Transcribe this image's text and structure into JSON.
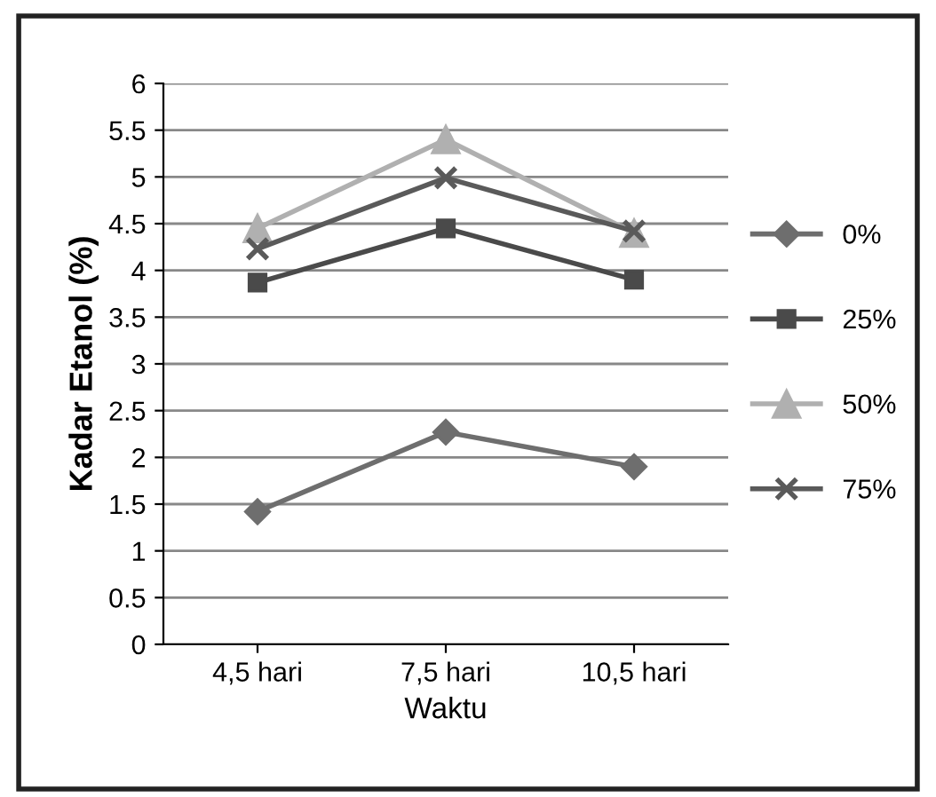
{
  "chart_data": {
    "type": "line",
    "xlabel": "Waktu",
    "ylabel": "Kadar Etanol (%)",
    "categories": [
      "4,5 hari",
      "7,5 hari",
      "10,5 hari"
    ],
    "series": [
      {
        "name": "0%",
        "color": "#6e6e6e",
        "marker": "diamond",
        "values": [
          1.42,
          2.27,
          1.9
        ]
      },
      {
        "name": "25%",
        "color": "#4a4a4a",
        "marker": "square",
        "values": [
          3.87,
          4.45,
          3.9
        ]
      },
      {
        "name": "50%",
        "color": "#b0b0b0",
        "marker": "triangle",
        "values": [
          4.45,
          5.4,
          4.4
        ]
      },
      {
        "name": "75%",
        "color": "#5a5a5a",
        "marker": "cross",
        "values": [
          4.23,
          4.99,
          4.42
        ]
      }
    ],
    "ylim": [
      0,
      6
    ],
    "yticks": [
      0,
      0.5,
      1,
      1.5,
      2,
      2.5,
      3,
      3.5,
      4,
      4.5,
      5,
      5.5,
      6
    ],
    "grid": "y",
    "legend": "right"
  }
}
